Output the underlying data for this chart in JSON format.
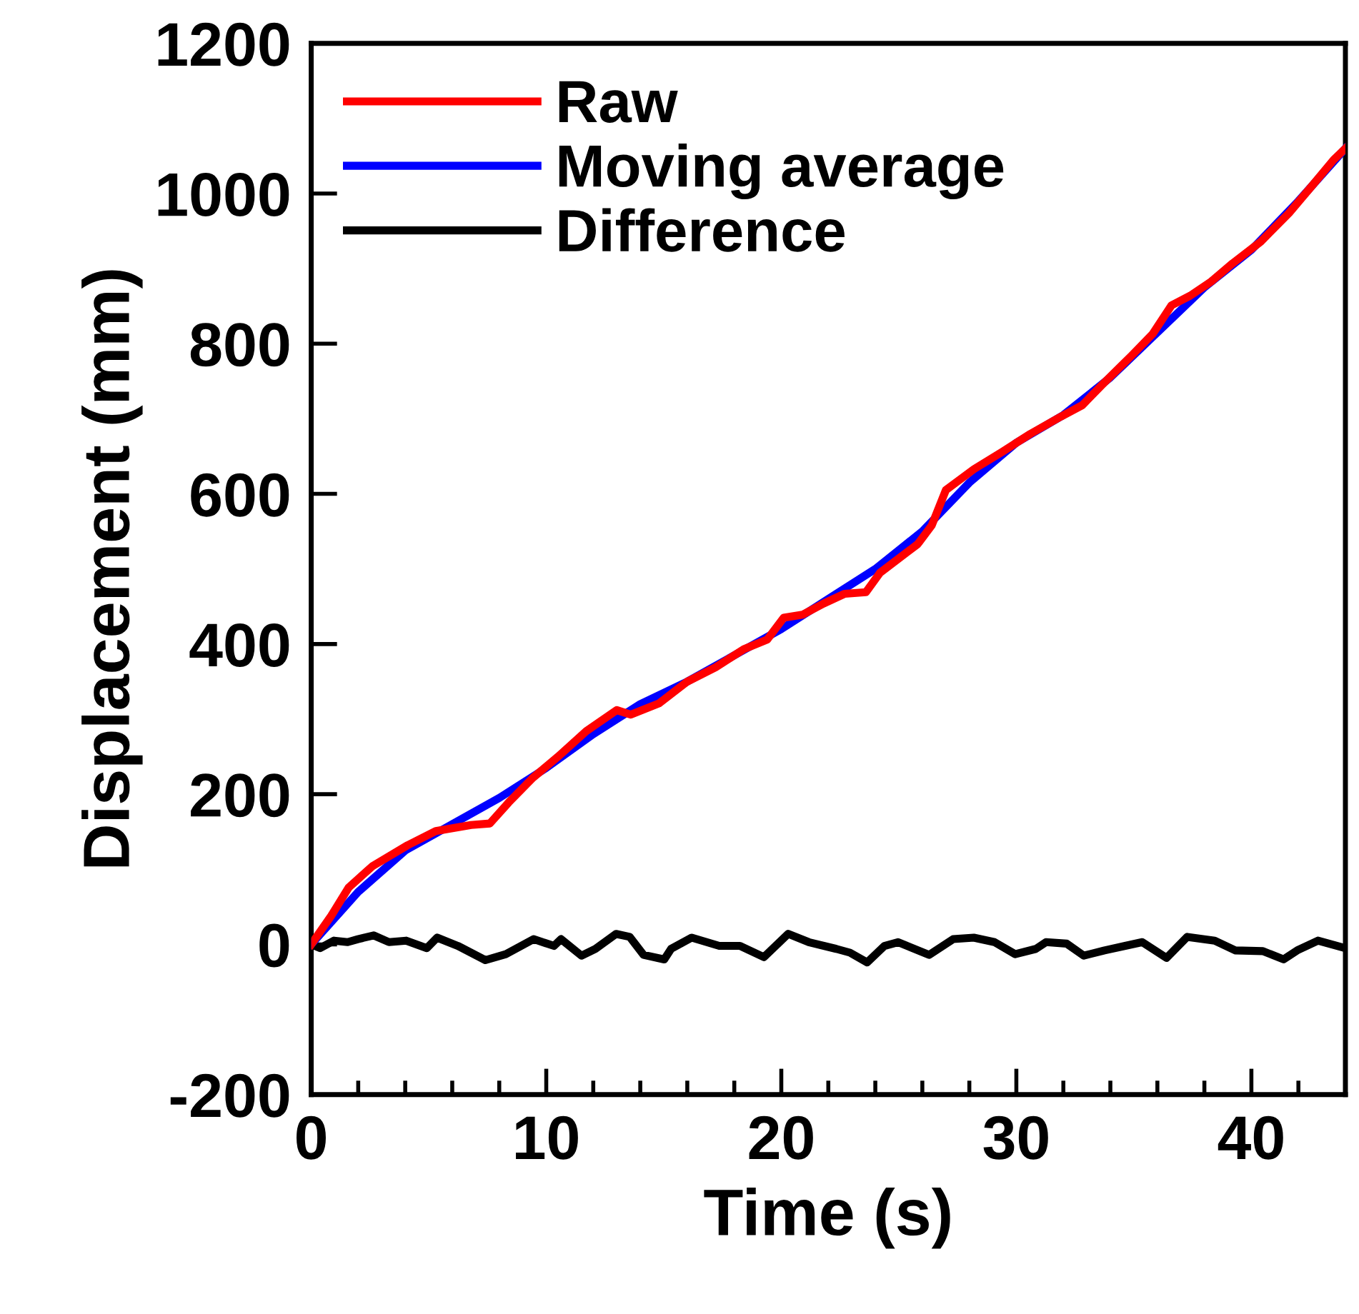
{
  "chart_data": {
    "type": "line",
    "xlabel": "Time (s)",
    "ylabel": "Displacement (mm)",
    "xlim": [
      0,
      44
    ],
    "xticks": [
      0,
      {
        "value": 2,
        "label": null
      },
      {
        "value": 4,
        "label": null
      },
      {
        "value": 6,
        "label": null
      },
      {
        "value": 8,
        "label": null
      },
      10,
      {
        "value": 12,
        "label": null
      },
      {
        "value": 14,
        "label": null
      },
      {
        "value": 16,
        "label": null
      },
      {
        "value": 18,
        "label": null
      },
      20,
      {
        "value": 22,
        "label": null
      },
      {
        "value": 24,
        "label": null
      },
      {
        "value": 26,
        "label": null
      },
      {
        "value": 28,
        "label": null
      },
      30,
      {
        "value": 32,
        "label": null
      },
      {
        "value": 34,
        "label": null
      },
      {
        "value": 36,
        "label": null
      },
      {
        "value": 38,
        "label": null
      },
      40,
      {
        "value": 42,
        "label": null
      },
      {
        "value": 44,
        "label": null
      }
    ],
    "ylim": [
      -200,
      1200
    ],
    "yticks": [
      -200,
      0,
      200,
      400,
      600,
      800,
      1000,
      1200
    ],
    "grid": false,
    "legend": "top left",
    "marker": "none",
    "line_style": "solid",
    "series": [
      {
        "name": "Raw",
        "color": "#ff0000",
        "x": [
          0,
          0.85,
          1.6,
          2.6,
          4.1,
          5.3,
          6.8,
          7.6,
          8.4,
          9.4,
          10.5,
          11.7,
          13,
          13.6,
          14.8,
          16,
          17.2,
          18.4,
          19.4,
          20.1,
          20.9,
          21.8,
          22.7,
          23.6,
          24.2,
          25.8,
          26.4,
          27,
          28.2,
          29.4,
          30.6,
          31.9,
          32.8,
          33.7,
          34.9,
          35.8,
          36.6,
          37.4,
          38.3,
          39.2,
          40.4,
          41.6,
          42.6,
          43.5,
          44
        ],
        "values": [
          0,
          38,
          76,
          104,
          132,
          151,
          159,
          161,
          189,
          221,
          250,
          284,
          312,
          306,
          321,
          350,
          369,
          393,
          406,
          435,
          439,
          454,
          467,
          469,
          495,
          533,
          558,
          605,
          633,
          656,
          680,
          703,
          718,
          747,
          784,
          813,
          851,
          864,
          883,
          907,
          936,
          974,
          1011,
          1045,
          1060
        ]
      },
      {
        "name": "Moving average",
        "color": "#0000ff",
        "x": [
          0,
          2,
          4,
          6,
          8,
          10,
          12,
          14,
          16,
          18,
          20,
          22,
          24,
          26,
          28,
          30,
          32,
          34,
          36,
          38,
          40,
          42,
          44
        ],
        "values": [
          0,
          70,
          125,
          160,
          195,
          235,
          280,
          320,
          350,
          385,
          420,
          460,
          500,
          550,
          615,
          668,
          705,
          755,
          815,
          875,
          925,
          990,
          1060
        ]
      },
      {
        "name": "Difference",
        "color": "#000000",
        "x": [
          0,
          0.38,
          0.97,
          1.55,
          1.99,
          2.66,
          3.31,
          4.04,
          4.92,
          5.36,
          6.24,
          7.41,
          8.28,
          9.46,
          10.33,
          10.63,
          11.5,
          12.09,
          12.97,
          13.55,
          14.14,
          15.02,
          15.31,
          16.19,
          17.36,
          18.24,
          19.26,
          20.29,
          21.17,
          22.34,
          22.92,
          23.65,
          24.39,
          24.97,
          26.29,
          27.31,
          28.19,
          29.07,
          29.95,
          30.83,
          31.26,
          32.14,
          32.87,
          33.75,
          34.63,
          35.36,
          36.39,
          37.27,
          38.44,
          39.31,
          40.49,
          41.37,
          41.95,
          42.83,
          44
        ],
        "values": [
          0,
          -5,
          5,
          3,
          7,
          12,
          3,
          5,
          -5,
          9,
          -2,
          -21,
          -13,
          7,
          -2,
          7,
          -15,
          -6,
          14,
          10,
          -14,
          -20,
          -6,
          9,
          -2,
          -2,
          -17,
          14,
          3,
          -6,
          -11,
          -24,
          -2,
          3,
          -14,
          7,
          9,
          3,
          -13,
          -6,
          3,
          1,
          -15,
          -8,
          -2,
          3,
          -18,
          10,
          5,
          -8,
          -9,
          -20,
          -8,
          5,
          -5
        ]
      }
    ]
  }
}
